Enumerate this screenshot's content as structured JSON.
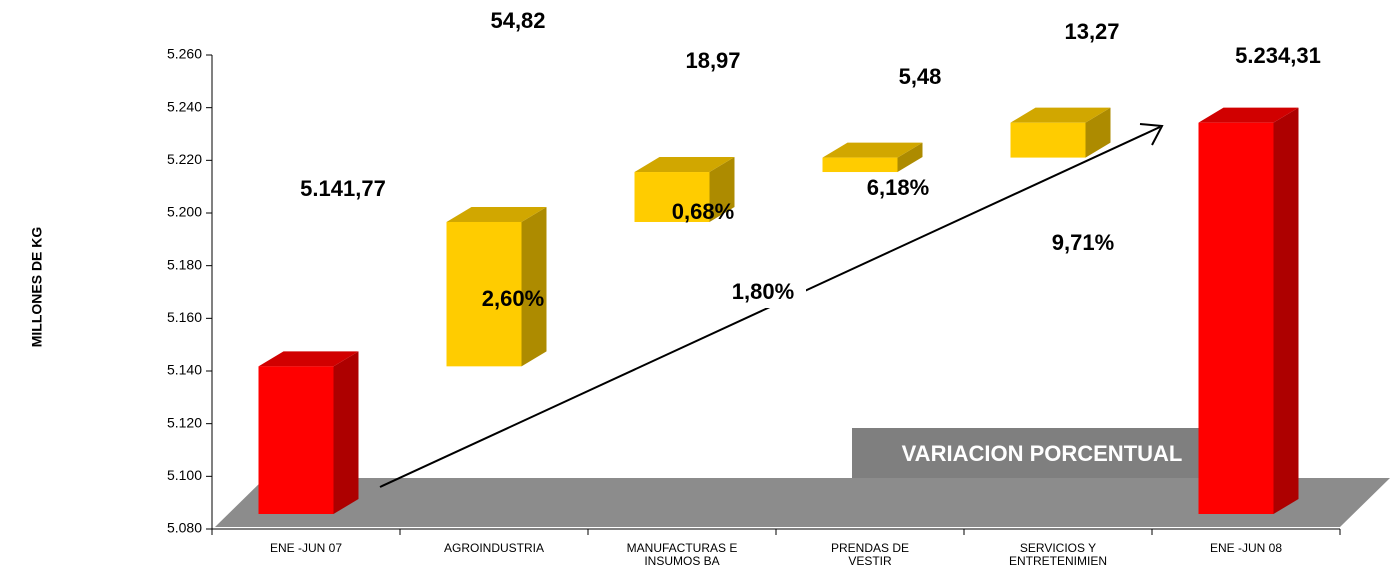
{
  "chart_data": {
    "type": "waterfall",
    "y_axis_label": "MILLONES DE KG",
    "categories": [
      [
        "ENE -JUN 07"
      ],
      [
        "AGROINDUSTRIA"
      ],
      [
        "MANUFACTURAS E",
        "INSUMOS BA"
      ],
      [
        "PRENDAS DE",
        "VESTIR"
      ],
      [
        "SERVICIOS Y",
        "ENTRETENIMIEN"
      ],
      [
        "ENE -JUN 08"
      ]
    ],
    "values": [
      5141.77,
      54.82,
      18.97,
      5.48,
      13.27,
      5234.31
    ],
    "value_labels": [
      "5.141,77",
      "54,82",
      "18,97",
      "5,48",
      "13,27",
      "5.234,31"
    ],
    "is_total": [
      true,
      false,
      false,
      false,
      false,
      true
    ],
    "total_color": "#ff0000",
    "increase_color": "#ffcc00",
    "variation_labels": [
      null,
      "2,60%",
      "0,68%",
      "6,18%",
      "9,71%",
      null
    ],
    "total_variation": "1,80%",
    "annotation": "VARIACION PORCENTUAL",
    "ylim": [
      5080,
      5260
    ],
    "yticks": [
      {
        "value": 5080,
        "label": "5.080"
      },
      {
        "value": 5100,
        "label": "5.100"
      },
      {
        "value": 5120,
        "label": "5.120"
      },
      {
        "value": 5140,
        "label": "5.140"
      },
      {
        "value": 5160,
        "label": "5.160"
      },
      {
        "value": 5180,
        "label": "5.180"
      },
      {
        "value": 5200,
        "label": "5.200"
      },
      {
        "value": 5220,
        "label": "5.220"
      },
      {
        "value": 5240,
        "label": "5.240"
      },
      {
        "value": 5260,
        "label": "5.260"
      }
    ]
  }
}
